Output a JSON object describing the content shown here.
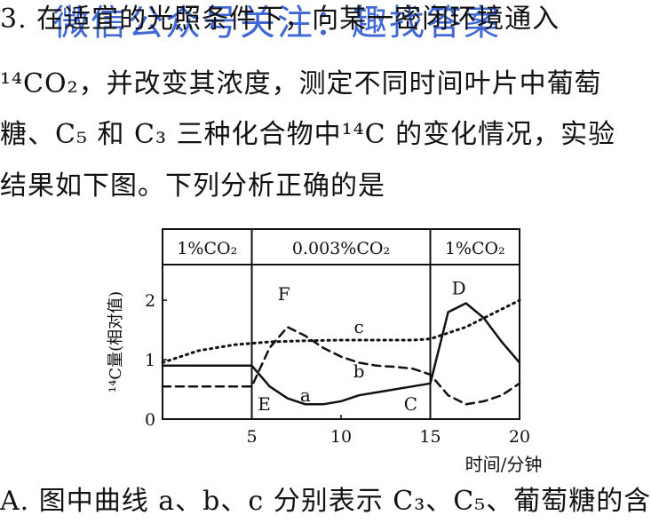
{
  "question": {
    "line1": "3. 在适宜的光照条件下，向某一密闭环境通入",
    "line2": "¹⁴CO₂，并改变其浓度，测定不同时间叶片中葡萄",
    "line3": "糖、C₅ 和 C₃ 三种化合物中¹⁴C 的变化情况，实验",
    "line4": "结果如下图。下列分析正确的是",
    "option_a": "A. 图中曲线 a、b、c 分别表示 C₃、C₅、葡萄糖的含"
  },
  "watermark": "微信公众号关注：趣找答案",
  "chart_data": {
    "type": "line",
    "phase_labels": [
      "1%CO₂",
      "0.003%CO₂",
      "1%CO₂"
    ],
    "phase_bounds": [
      0,
      5,
      15,
      20
    ],
    "xlim": [
      0,
      20
    ],
    "ylim": [
      0,
      2.6
    ],
    "x_ticks": [
      "5",
      "10",
      "15",
      "20"
    ],
    "y_ticks": [
      "0",
      "1",
      "2"
    ],
    "origin_label": "0",
    "xlabel": "时间/分钟",
    "ylabel": "¹⁴C量(相对值)",
    "series": [
      {
        "name": "a",
        "style": "solid",
        "x": [
          0,
          5,
          6,
          7,
          8,
          9,
          10,
          11,
          12,
          13,
          14,
          15,
          16,
          17,
          18,
          19,
          20
        ],
        "y": [
          0.9,
          0.9,
          0.55,
          0.35,
          0.25,
          0.25,
          0.3,
          0.4,
          0.45,
          0.5,
          0.55,
          0.6,
          1.8,
          1.95,
          1.7,
          1.3,
          0.95
        ]
      },
      {
        "name": "b",
        "style": "dashed",
        "x": [
          0,
          5,
          6,
          7,
          8,
          9,
          10,
          11,
          12,
          13,
          14,
          15,
          16,
          17,
          18,
          19,
          20
        ],
        "y": [
          0.55,
          0.55,
          1.2,
          1.55,
          1.4,
          1.2,
          1.05,
          0.95,
          0.9,
          0.88,
          0.85,
          0.75,
          0.4,
          0.25,
          0.3,
          0.4,
          0.6
        ]
      },
      {
        "name": "c",
        "style": "dotted",
        "x": [
          0,
          2,
          4,
          6,
          8,
          10,
          12,
          14,
          15,
          16,
          17,
          18,
          19,
          20
        ],
        "y": [
          0.95,
          1.15,
          1.25,
          1.3,
          1.32,
          1.33,
          1.33,
          1.33,
          1.35,
          1.45,
          1.55,
          1.7,
          1.85,
          2.0
        ]
      }
    ],
    "point_labels": [
      {
        "text": "F",
        "x": 6.8,
        "y": 2.0
      },
      {
        "text": "c",
        "x": 11.0,
        "y": 1.45
      },
      {
        "text": "b",
        "x": 11.0,
        "y": 0.7
      },
      {
        "text": "a",
        "x": 8.0,
        "y": 0.3
      },
      {
        "text": "E",
        "x": 5.7,
        "y": 0.15
      },
      {
        "text": "C",
        "x": 13.9,
        "y": 0.15
      },
      {
        "text": "D",
        "x": 16.6,
        "y": 2.1
      }
    ]
  }
}
